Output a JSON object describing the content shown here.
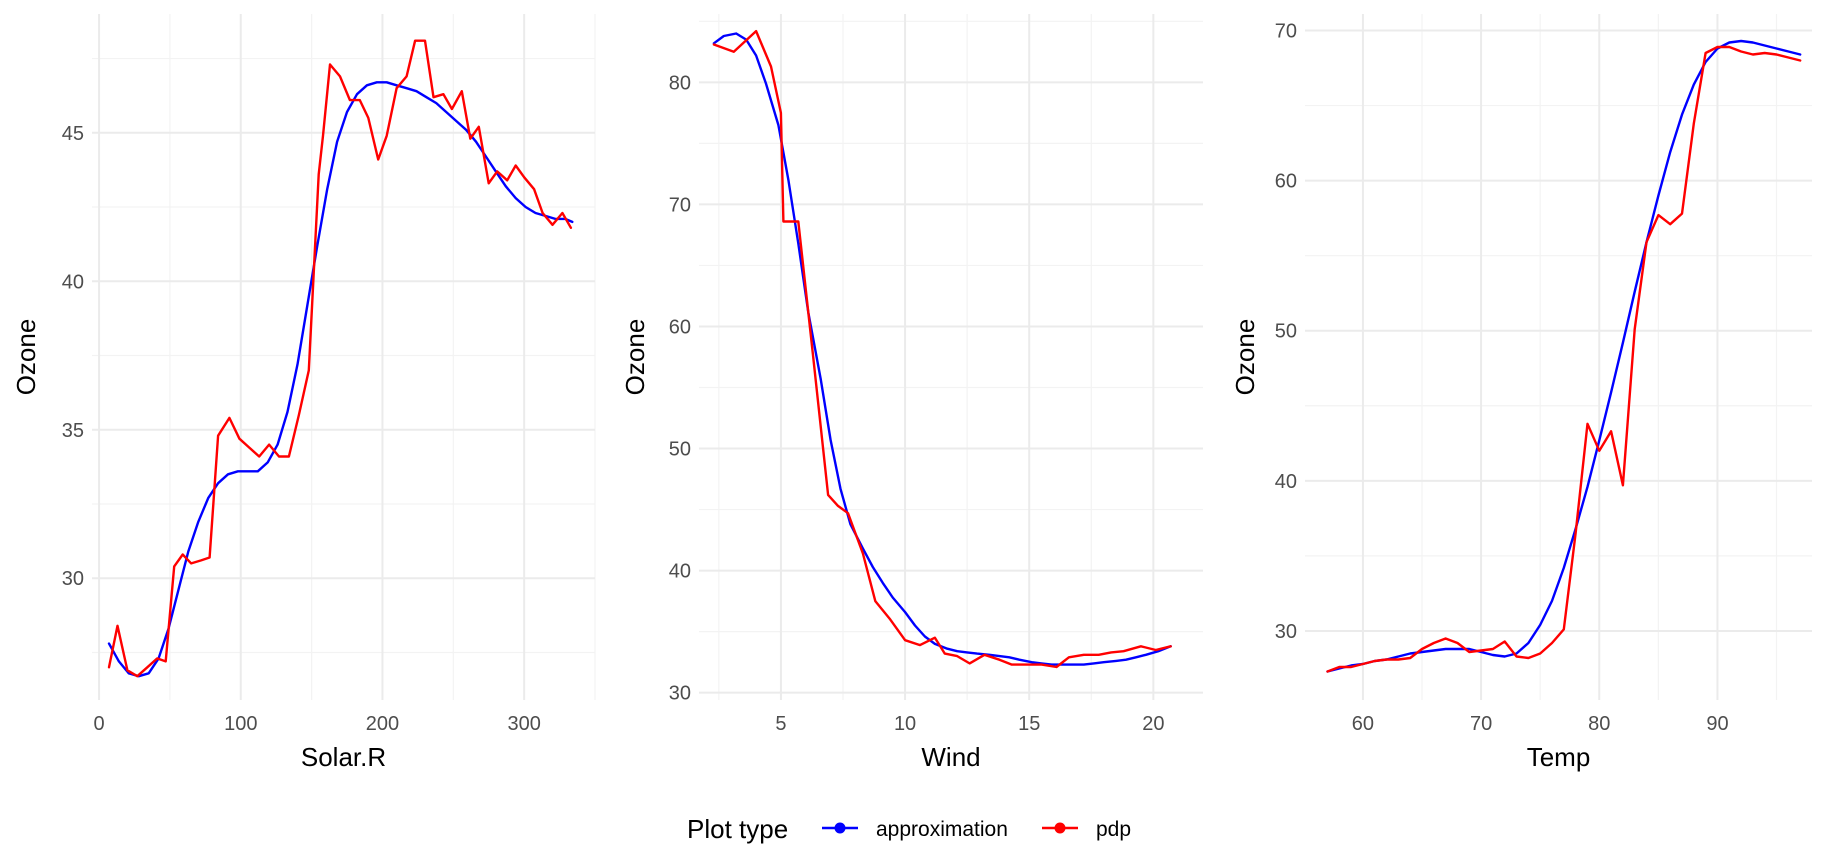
{
  "legend": {
    "title": "Plot type",
    "entries": [
      {
        "label": "approximation",
        "color": "#0000ff"
      },
      {
        "label": "pdp",
        "color": "#ff0000"
      }
    ]
  },
  "chart_data": [
    {
      "type": "line",
      "xlabel": "Solar.R",
      "ylabel": "Ozone",
      "xlim": [
        -5,
        350
      ],
      "ylim": [
        25.9,
        49.0
      ],
      "xticks": [
        0,
        100,
        200,
        300
      ],
      "yticks": [
        30,
        35,
        40,
        45
      ],
      "grid": true,
      "series": [
        {
          "name": "approximation",
          "color": "#0000ff",
          "x": [
            7,
            14,
            21,
            28,
            35,
            42,
            49,
            56,
            63,
            70,
            77,
            84,
            91,
            98,
            105,
            112,
            119,
            126,
            133,
            140,
            147,
            154,
            161,
            168,
            175,
            182,
            189,
            196,
            203,
            210,
            217,
            224,
            231,
            238,
            245,
            252,
            259,
            266,
            273,
            280,
            287,
            294,
            301,
            308,
            315,
            322,
            329,
            334
          ],
          "y": [
            27.8,
            27.2,
            26.8,
            26.7,
            26.8,
            27.3,
            28.3,
            29.6,
            30.9,
            31.9,
            32.7,
            33.2,
            33.5,
            33.6,
            33.6,
            33.6,
            33.9,
            34.5,
            35.6,
            37.2,
            39.2,
            41.2,
            43.1,
            44.7,
            45.7,
            46.3,
            46.6,
            46.7,
            46.7,
            46.6,
            46.5,
            46.4,
            46.2,
            46.0,
            45.7,
            45.4,
            45.1,
            44.7,
            44.2,
            43.7,
            43.2,
            42.8,
            42.5,
            42.3,
            42.2,
            42.1,
            42.1,
            42.0
          ]
        },
        {
          "name": "pdp",
          "color": "#ff0000",
          "x": [
            7,
            13,
            20,
            27,
            34,
            41,
            47,
            53,
            59,
            65,
            72,
            78,
            84,
            92,
            99,
            106,
            113,
            120,
            127,
            134,
            141,
            148,
            155,
            158,
            163,
            170,
            177,
            184,
            190,
            197,
            203,
            210,
            217,
            223,
            230,
            236,
            243,
            249,
            256,
            262,
            268,
            275,
            281,
            288,
            294,
            300,
            307,
            313,
            320,
            327,
            333
          ],
          "y": [
            27.0,
            28.4,
            26.9,
            26.7,
            27.0,
            27.3,
            27.2,
            30.4,
            30.8,
            30.5,
            30.6,
            30.7,
            34.8,
            35.4,
            34.7,
            34.4,
            34.1,
            34.5,
            34.1,
            34.1,
            35.5,
            37.0,
            43.6,
            44.9,
            47.3,
            46.9,
            46.1,
            46.1,
            45.5,
            44.1,
            44.9,
            46.5,
            46.9,
            48.1,
            48.1,
            46.2,
            46.3,
            45.8,
            46.4,
            44.8,
            45.2,
            43.3,
            43.7,
            43.4,
            43.9,
            43.5,
            43.1,
            42.3,
            41.9,
            42.3,
            41.8
          ]
        }
      ]
    },
    {
      "type": "line",
      "xlabel": "Wind",
      "ylabel": "Ozone",
      "xlim": [
        1.7,
        22.0
      ],
      "ylim": [
        29.4,
        85.6
      ],
      "xticks": [
        5,
        10,
        15,
        20
      ],
      "yticks": [
        30,
        40,
        50,
        60,
        70,
        80
      ],
      "grid": true,
      "series": [
        {
          "name": "approximation",
          "color": "#0000ff",
          "x": [
            2.3,
            2.7,
            3.2,
            3.6,
            4.0,
            4.4,
            4.9,
            5.3,
            5.7,
            6.1,
            6.6,
            7.0,
            7.4,
            7.8,
            8.3,
            8.7,
            9.1,
            9.5,
            10.0,
            10.4,
            10.8,
            11.2,
            11.7,
            12.1,
            12.5,
            12.9,
            13.4,
            13.8,
            14.2,
            14.6,
            15.1,
            15.5,
            15.9,
            16.3,
            16.8,
            17.2,
            17.6,
            18.0,
            18.5,
            18.9,
            19.3,
            19.7,
            20.2,
            20.7
          ],
          "y": [
            83.2,
            83.8,
            84.0,
            83.5,
            82.2,
            79.9,
            76.5,
            72.0,
            66.8,
            61.2,
            55.7,
            50.7,
            46.7,
            43.8,
            41.8,
            40.3,
            39.0,
            37.8,
            36.6,
            35.5,
            34.6,
            34.0,
            33.6,
            33.4,
            33.3,
            33.2,
            33.1,
            33.0,
            32.9,
            32.7,
            32.5,
            32.4,
            32.3,
            32.3,
            32.3,
            32.3,
            32.4,
            32.5,
            32.6,
            32.7,
            32.9,
            33.1,
            33.4,
            33.8
          ]
        },
        {
          "name": "pdp",
          "color": "#ff0000",
          "x": [
            2.3,
            3.1,
            4.0,
            4.6,
            5.0,
            5.1,
            5.7,
            6.3,
            6.9,
            7.3,
            7.7,
            8.3,
            8.8,
            9.4,
            10.0,
            10.6,
            11.2,
            11.6,
            12.1,
            12.6,
            13.2,
            13.8,
            14.3,
            14.9,
            15.5,
            16.1,
            16.6,
            17.2,
            17.8,
            18.3,
            18.8,
            19.5,
            20.1,
            20.7
          ],
          "y": [
            83.1,
            82.5,
            84.2,
            81.3,
            77.5,
            68.6,
            68.6,
            57.5,
            46.2,
            45.3,
            44.7,
            41.4,
            37.5,
            36.0,
            34.3,
            33.9,
            34.5,
            33.2,
            33.0,
            32.4,
            33.1,
            32.7,
            32.3,
            32.3,
            32.3,
            32.1,
            32.9,
            33.1,
            33.1,
            33.3,
            33.4,
            33.8,
            33.5,
            33.8
          ]
        }
      ]
    },
    {
      "type": "line",
      "xlabel": "Temp",
      "ylabel": "Ozone",
      "xlim": [
        55.1,
        98.0
      ],
      "ylim": [
        25.4,
        71.1
      ],
      "xticks": [
        60,
        70,
        80,
        90
      ],
      "yticks": [
        30,
        40,
        50,
        60,
        70
      ],
      "grid": true,
      "series": [
        {
          "name": "approximation",
          "color": "#0000ff",
          "x": [
            57,
            58,
            59,
            60,
            61,
            62,
            63,
            64,
            65,
            66,
            67,
            68,
            69,
            70,
            71,
            72,
            73,
            74,
            75,
            76,
            77,
            78,
            79,
            80,
            81,
            82,
            83,
            84,
            85,
            86,
            87,
            88,
            89,
            90,
            91,
            92,
            93,
            94,
            95,
            96,
            97
          ],
          "y": [
            27.3,
            27.5,
            27.7,
            27.8,
            28.0,
            28.1,
            28.3,
            28.5,
            28.6,
            28.7,
            28.8,
            28.8,
            28.8,
            28.6,
            28.4,
            28.3,
            28.5,
            29.2,
            30.4,
            32.0,
            34.2,
            36.8,
            39.6,
            42.7,
            45.9,
            49.2,
            52.6,
            55.9,
            59.0,
            61.9,
            64.4,
            66.4,
            67.9,
            68.8,
            69.2,
            69.3,
            69.2,
            69.0,
            68.8,
            68.6,
            68.4
          ]
        },
        {
          "name": "pdp",
          "color": "#ff0000",
          "x": [
            57,
            58,
            59,
            60,
            61,
            62,
            63,
            64,
            65,
            66,
            67,
            68,
            69,
            70,
            71,
            72,
            73,
            74,
            75,
            76,
            77,
            78,
            79,
            80,
            81,
            82,
            83,
            84,
            85,
            86,
            87,
            88,
            89,
            90,
            91,
            92,
            93,
            94,
            95,
            96,
            97
          ],
          "y": [
            27.3,
            27.6,
            27.6,
            27.8,
            28.0,
            28.1,
            28.1,
            28.2,
            28.8,
            29.2,
            29.5,
            29.2,
            28.6,
            28.7,
            28.8,
            29.3,
            28.3,
            28.2,
            28.5,
            29.2,
            30.1,
            36.5,
            43.8,
            42.0,
            43.3,
            39.7,
            50.1,
            55.9,
            57.7,
            57.1,
            57.8,
            63.8,
            68.5,
            68.9,
            68.9,
            68.6,
            68.4,
            68.5,
            68.4,
            68.2,
            68.0
          ]
        }
      ]
    }
  ]
}
